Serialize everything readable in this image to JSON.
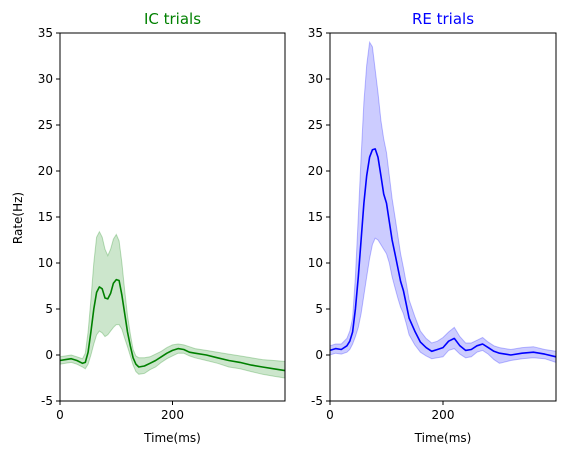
{
  "chart_data": [
    {
      "type": "line",
      "title": "IC trials",
      "title_color": "#008000",
      "line_color": "#008000",
      "band_color": "#008000",
      "band_opacity": 0.2,
      "xlabel": "Time(ms)",
      "ylabel": "Rate(Hz)",
      "xlim": [
        0,
        400
      ],
      "ylim": [
        -5,
        35
      ],
      "xticks": [
        0,
        200
      ],
      "yticks": [
        -5,
        0,
        5,
        10,
        15,
        20,
        25,
        30,
        35
      ],
      "grid": false,
      "x": [
        0,
        10,
        20,
        30,
        40,
        45,
        50,
        55,
        60,
        65,
        70,
        75,
        80,
        85,
        90,
        95,
        100,
        105,
        110,
        115,
        120,
        125,
        130,
        135,
        140,
        150,
        160,
        170,
        180,
        190,
        200,
        210,
        220,
        230,
        240,
        260,
        280,
        300,
        320,
        340,
        360,
        380,
        400
      ],
      "y": [
        -0.6,
        -0.5,
        -0.4,
        -0.6,
        -0.9,
        -0.8,
        0.3,
        2.5,
        5.0,
        6.8,
        7.4,
        7.2,
        6.2,
        6.1,
        6.7,
        7.8,
        8.2,
        8.1,
        6.5,
        4.5,
        2.5,
        1.0,
        -0.3,
        -1.0,
        -1.3,
        -1.2,
        -0.9,
        -0.6,
        -0.2,
        0.2,
        0.5,
        0.7,
        0.6,
        0.3,
        0.2,
        0.0,
        -0.3,
        -0.6,
        -0.8,
        -1.1,
        -1.3,
        -1.5,
        -1.7
      ],
      "upper": [
        -0.2,
        -0.1,
        0.0,
        -0.2,
        -0.4,
        0.2,
        2.5,
        6.0,
        10.0,
        12.8,
        13.4,
        12.8,
        11.5,
        10.8,
        11.5,
        12.6,
        13.1,
        12.4,
        10.0,
        7.0,
        4.3,
        2.3,
        0.6,
        -0.1,
        -0.3,
        -0.3,
        -0.2,
        0.1,
        0.4,
        0.8,
        1.1,
        1.2,
        1.1,
        0.9,
        0.7,
        0.5,
        0.3,
        0.1,
        -0.1,
        -0.3,
        -0.5,
        -0.6,
        -0.7
      ],
      "lower": [
        -1.0,
        -0.9,
        -0.8,
        -1.0,
        -1.3,
        -1.5,
        -1.0,
        0.0,
        1.2,
        2.2,
        2.6,
        2.4,
        2.0,
        2.2,
        2.6,
        3.0,
        3.3,
        3.3,
        2.8,
        1.8,
        0.9,
        -0.1,
        -1.1,
        -1.8,
        -2.1,
        -2.0,
        -1.6,
        -1.3,
        -0.8,
        -0.4,
        -0.1,
        0.2,
        0.2,
        -0.1,
        -0.3,
        -0.6,
        -0.9,
        -1.3,
        -1.5,
        -1.8,
        -2.1,
        -2.3,
        -2.5
      ]
    },
    {
      "type": "line",
      "title": "RE trials",
      "title_color": "#0000ff",
      "line_color": "#0000ff",
      "band_color": "#0000ff",
      "band_opacity": 0.2,
      "xlabel": "Time(ms)",
      "ylabel": "",
      "xlim": [
        0,
        400
      ],
      "ylim": [
        -5,
        35
      ],
      "xticks": [
        0,
        200
      ],
      "yticks": [
        -5,
        0,
        5,
        10,
        15,
        20,
        25,
        30,
        35
      ],
      "grid": false,
      "x": [
        0,
        10,
        20,
        30,
        35,
        40,
        45,
        50,
        55,
        60,
        65,
        70,
        75,
        80,
        85,
        90,
        95,
        100,
        105,
        110,
        115,
        120,
        125,
        130,
        135,
        140,
        150,
        160,
        170,
        180,
        190,
        200,
        210,
        220,
        230,
        240,
        250,
        260,
        270,
        280,
        290,
        300,
        320,
        340,
        360,
        380,
        400
      ],
      "y": [
        0.5,
        0.7,
        0.6,
        1.0,
        1.5,
        2.5,
        5.0,
        8.5,
        12.5,
        16.5,
        19.5,
        21.5,
        22.3,
        22.4,
        21.5,
        19.5,
        17.5,
        16.5,
        14.5,
        12.5,
        11.0,
        9.5,
        8.0,
        7.0,
        5.5,
        4.0,
        2.6,
        1.4,
        0.8,
        0.4,
        0.6,
        0.8,
        1.5,
        1.8,
        1.0,
        0.5,
        0.6,
        1.0,
        1.2,
        0.8,
        0.4,
        0.2,
        0.0,
        0.2,
        0.3,
        0.1,
        -0.2
      ],
      "upper": [
        1.0,
        1.2,
        1.2,
        1.8,
        2.6,
        4.0,
        8.5,
        15.0,
        21.5,
        27.5,
        31.5,
        34.0,
        33.5,
        31.0,
        28.5,
        25.5,
        23.5,
        22.0,
        19.5,
        17.0,
        15.0,
        13.0,
        11.0,
        9.5,
        7.8,
        6.0,
        4.2,
        2.6,
        1.8,
        1.3,
        1.5,
        1.9,
        2.5,
        3.0,
        2.0,
        1.3,
        1.3,
        1.6,
        1.9,
        1.4,
        1.0,
        0.8,
        0.6,
        0.8,
        0.9,
        0.6,
        0.4
      ],
      "lower": [
        0.0,
        0.2,
        0.1,
        0.3,
        0.6,
        1.2,
        2.0,
        3.0,
        4.5,
        6.5,
        8.5,
        10.5,
        12.0,
        12.7,
        12.5,
        12.0,
        11.5,
        11.0,
        10.0,
        8.5,
        7.3,
        6.2,
        5.2,
        4.5,
        3.4,
        2.2,
        1.1,
        0.3,
        -0.1,
        -0.4,
        -0.3,
        -0.2,
        0.5,
        0.7,
        0.1,
        -0.3,
        -0.2,
        0.3,
        0.5,
        0.1,
        -0.5,
        -0.9,
        -0.6,
        -0.4,
        -0.3,
        -0.4,
        -0.8
      ]
    }
  ]
}
